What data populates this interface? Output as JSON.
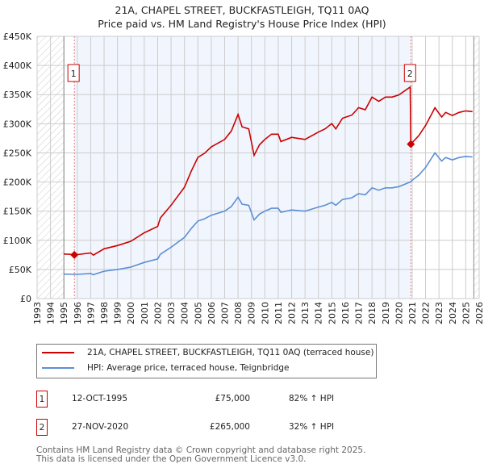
{
  "title": "21A, CHAPEL STREET, BUCKFASTLEIGH, TQ11 0AQ",
  "subtitle": "Price paid vs. HM Land Registry's House Price Index (HPI)",
  "chart_data": {
    "type": "line",
    "title": "21A, CHAPEL STREET, BUCKFASTLEIGH, TQ11 0AQ",
    "subtitle": "Price paid vs. HM Land Registry's House Price Index (HPI)",
    "xlim": [
      1993,
      2026
    ],
    "ylim": [
      0,
      450000
    ],
    "x_ticks": [
      "1993",
      "1994",
      "1995",
      "1996",
      "1997",
      "1998",
      "1999",
      "2000",
      "2001",
      "2002",
      "2003",
      "2004",
      "2005",
      "2006",
      "2007",
      "2008",
      "2009",
      "2010",
      "2011",
      "2012",
      "2013",
      "2014",
      "2015",
      "2016",
      "2017",
      "2018",
      "2019",
      "2020",
      "2021",
      "2022",
      "2023",
      "2024",
      "2025",
      "2026"
    ],
    "y_ticks": [
      {
        "v": 0,
        "label": "£0"
      },
      {
        "v": 50000,
        "label": "£50K"
      },
      {
        "v": 100000,
        "label": "£100K"
      },
      {
        "v": 150000,
        "label": "£150K"
      },
      {
        "v": 200000,
        "label": "£200K"
      },
      {
        "v": 250000,
        "label": "£250K"
      },
      {
        "v": 300000,
        "label": "£300K"
      },
      {
        "v": 350000,
        "label": "£350K"
      },
      {
        "v": 400000,
        "label": "£400K"
      },
      {
        "v": 450000,
        "label": "£450K"
      }
    ],
    "grid": true,
    "legend_placement": "below",
    "series": [
      {
        "name": "21A, CHAPEL STREET, BUCKFASTLEIGH, TQ11 0AQ (terraced house)",
        "color": "#cc0000",
        "x": [
          1995.0,
          1996,
          1997,
          1997.2,
          1998,
          1999,
          2000,
          2001,
          2002,
          2002.2,
          2003,
          2004,
          2004.5,
          2005,
          2005.5,
          2006,
          2007,
          2007.5,
          2008,
          2008.3,
          2008.8,
          2009.2,
          2009.6,
          2010,
          2010.5,
          2011,
          2011.2,
          2012,
          2013,
          2014,
          2014.5,
          2015,
          2015.3,
          2015.8,
          2016.5,
          2017,
          2017.5,
          2018,
          2018.5,
          2019,
          2019.5,
          2020,
          2020.85,
          2020.9,
          2021.5,
          2022,
          2022.7,
          2023.2,
          2023.5,
          2024,
          2024.5,
          2025,
          2025.5
        ],
        "y": [
          76400,
          75500,
          78300,
          74600,
          85500,
          91000,
          98300,
          112800,
          123800,
          138300,
          160200,
          191100,
          218400,
          242100,
          249300,
          260300,
          273000,
          287600,
          316000,
          294800,
          291200,
          245700,
          263900,
          273000,
          282100,
          282100,
          269400,
          276600,
          273000,
          285700,
          291200,
          300300,
          291200,
          309400,
          314900,
          327600,
          324000,
          345800,
          338500,
          345800,
          345800,
          349400,
          363000,
          265000,
          279800,
          297000,
          327400,
          311500,
          319400,
          314200,
          319400,
          322000,
          320800
        ]
      },
      {
        "name": "HPI: Average price, terraced house, Teignbridge",
        "color": "#5b8fd4",
        "x": [
          1995.0,
          1996,
          1997,
          1997.2,
          1998,
          1999,
          2000,
          2001,
          2002,
          2002.2,
          2003,
          2004,
          2004.5,
          2005,
          2005.5,
          2006,
          2007,
          2007.5,
          2008,
          2008.3,
          2008.8,
          2009.2,
          2009.6,
          2010,
          2010.5,
          2011,
          2011.2,
          2012,
          2013,
          2014,
          2014.5,
          2015,
          2015.3,
          2015.8,
          2016.5,
          2017,
          2017.5,
          2018,
          2018.5,
          2019,
          2019.5,
          2020,
          2020.85,
          2020.9,
          2021.5,
          2022,
          2022.7,
          2023.2,
          2023.5,
          2024,
          2024.5,
          2025,
          2025.5
        ],
        "y": [
          42000,
          41500,
          43000,
          41000,
          47000,
          50000,
          54000,
          62000,
          68000,
          76000,
          88000,
          105000,
          120000,
          133000,
          137000,
          143000,
          150000,
          158000,
          174000,
          162000,
          160000,
          135000,
          145000,
          150000,
          155000,
          155000,
          148000,
          152000,
          150000,
          157000,
          160000,
          165000,
          160000,
          170000,
          173000,
          180000,
          178000,
          190000,
          186000,
          190000,
          190000,
          192000,
          200000,
          201000,
          212000,
          225000,
          250000,
          236000,
          242000,
          238000,
          242000,
          244000,
          243000
        ]
      }
    ],
    "annotations": [
      {
        "label": "1",
        "x": 1995.78,
        "y": 75000
      },
      {
        "label": "2",
        "x": 2020.9,
        "y": 265000
      }
    ]
  },
  "legend": [
    {
      "label": "21A, CHAPEL STREET, BUCKFASTLEIGH, TQ11 0AQ (terraced house)",
      "color": "#cc0000"
    },
    {
      "label": "HPI: Average price, terraced house, Teignbridge",
      "color": "#5b8fd4"
    }
  ],
  "sales": [
    {
      "num": "1",
      "date": "12-OCT-1995",
      "price": "£75,000",
      "hpi": "82% ↑ HPI"
    },
    {
      "num": "2",
      "date": "27-NOV-2020",
      "price": "£265,000",
      "hpi": "32% ↑ HPI"
    }
  ],
  "footer": {
    "line1": "Contains HM Land Registry data © Crown copyright and database right 2025.",
    "line2": "This data is licensed under the Open Government Licence v3.0."
  }
}
